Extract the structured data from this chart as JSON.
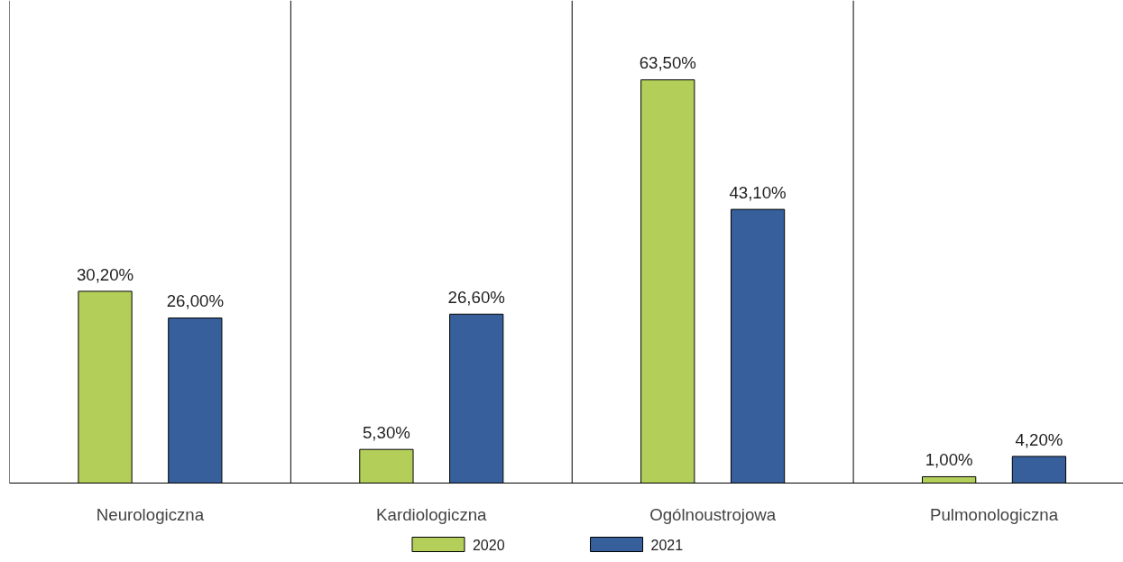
{
  "chart_data": {
    "type": "bar",
    "categories": [
      "Neurologiczna",
      "Kardiologiczna",
      "Ogólnoustrojowa",
      "Pulmonologiczna"
    ],
    "series": [
      {
        "name": "2020",
        "color": "#b3cf5a",
        "values": [
          30.2,
          5.3,
          63.5,
          1.0
        ],
        "value_labels": [
          "30,20%",
          "5,30%",
          "63,50%",
          "1,00%"
        ]
      },
      {
        "name": "2021",
        "color": "#365f9b",
        "values": [
          26.0,
          26.6,
          43.1,
          4.2
        ],
        "value_labels": [
          "26,00%",
          "26,60%",
          "43,10%",
          "4,20%"
        ]
      }
    ],
    "ylim": [
      0,
      76
    ],
    "tick_labels": "x",
    "grid": "x",
    "legend": "bottom"
  }
}
